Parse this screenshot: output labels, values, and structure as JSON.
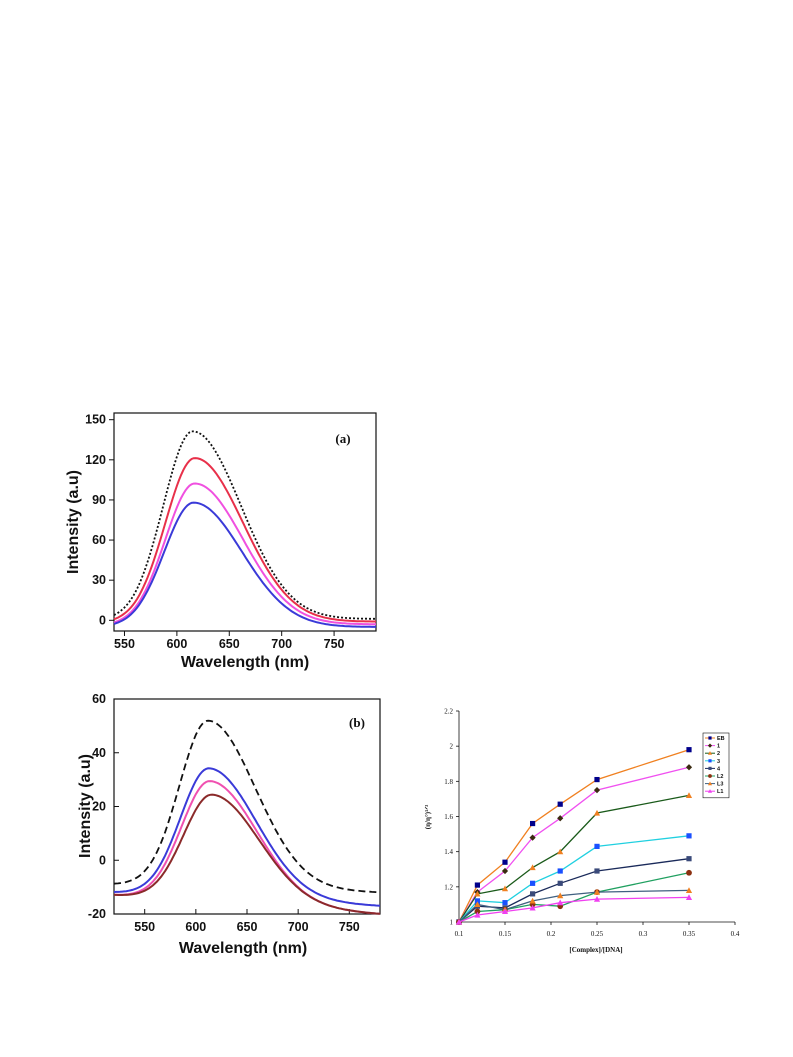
{
  "chart_data": [
    {
      "type": "line",
      "panel_label": "(a)",
      "xlabel": "Wavelength (nm)",
      "ylabel": "Intensity (a.u)",
      "xlim": [
        540,
        790
      ],
      "ylim": [
        -8,
        155
      ],
      "xticks": [
        550,
        600,
        650,
        700,
        750
      ],
      "yticks": [
        0,
        30,
        60,
        90,
        120,
        150
      ],
      "grid": false,
      "series": [
        {
          "style": "dotted",
          "color": "#111111",
          "peak_x": 615,
          "peak_y": 141,
          "base": 0,
          "tail": 1
        },
        {
          "style": "solid",
          "color": "#e8304a",
          "peak_x": 617,
          "peak_y": 121,
          "base": -2,
          "tail": -1
        },
        {
          "style": "solid",
          "color": "#f050e0",
          "peak_x": 617,
          "peak_y": 102,
          "base": -4,
          "tail": -3
        },
        {
          "style": "solid",
          "color": "#3a3ad8",
          "peak_x": 616,
          "peak_y": 88,
          "base": -5,
          "tail": -5
        }
      ]
    },
    {
      "type": "line",
      "panel_label": "(b)",
      "xlabel": "Wavelength (nm)",
      "ylabel": "Intensity (a.u)",
      "xlim": [
        520,
        780
      ],
      "ylim": [
        -20,
        60
      ],
      "xticks": [
        550,
        600,
        650,
        700,
        750
      ],
      "yticks": [
        -20,
        0,
        20,
        40,
        60
      ],
      "grid": false,
      "series": [
        {
          "style": "dashed",
          "color": "#111111",
          "peak_x": 612,
          "peak_y": 53,
          "base": -9,
          "tail": -12
        },
        {
          "style": "solid",
          "color": "#3a3ad8",
          "peak_x": 613,
          "peak_y": 36,
          "base": -12,
          "tail": -17
        },
        {
          "style": "solid",
          "color": "#f050b0",
          "peak_x": 614,
          "peak_y": 32,
          "base": -13,
          "tail": -20
        },
        {
          "style": "solid",
          "color": "#8b2a2a",
          "peak_x": 616,
          "peak_y": 27,
          "base": -13,
          "tail": -20
        }
      ]
    },
    {
      "type": "line",
      "xlabel": "[Complex]/[DNA]",
      "ylabel": "(η/η°)¹ᐟ³",
      "xlim": [
        0.1,
        0.4
      ],
      "ylim": [
        1,
        2.2
      ],
      "xticks": [
        "0.1",
        "0.15",
        "0.2",
        "0.25",
        "0.3",
        "0.35",
        "0.4"
      ],
      "yticks": [
        "1",
        "1.2",
        "1.4",
        "1.6",
        "1.8",
        "2",
        "2.2"
      ],
      "legend": "top-right",
      "grid": false,
      "x": [
        0.1,
        0.12,
        0.15,
        0.18,
        0.21,
        0.25,
        0.35
      ],
      "series": [
        {
          "name": "EB",
          "color": "#f08020",
          "marker": "square",
          "marker_color": "#00008b",
          "values": [
            1.0,
            1.21,
            1.34,
            1.56,
            1.67,
            1.81,
            1.98
          ]
        },
        {
          "name": "1",
          "color": "#f050f0",
          "marker": "diamond",
          "marker_color": "#3a2a10",
          "values": [
            1.0,
            1.17,
            1.29,
            1.48,
            1.59,
            1.75,
            1.88
          ]
        },
        {
          "name": "2",
          "color": "#1a5a1a",
          "marker": "triangle",
          "marker_color": "#f08020",
          "values": [
            1.0,
            1.16,
            1.19,
            1.31,
            1.4,
            1.62,
            1.72
          ]
        },
        {
          "name": "3",
          "color": "#20d0e0",
          "marker": "square",
          "marker_color": "#1a50ff",
          "values": [
            1.0,
            1.12,
            1.11,
            1.22,
            1.29,
            1.43,
            1.49
          ]
        },
        {
          "name": "4",
          "color": "#1a2a5a",
          "marker": "square",
          "marker_color": "#3a4a7a",
          "values": [
            1.0,
            1.09,
            1.08,
            1.16,
            1.22,
            1.29,
            1.36
          ]
        },
        {
          "name": "L2",
          "color": "#20a060",
          "marker": "circle",
          "marker_color": "#8b3010",
          "values": [
            1.0,
            1.06,
            1.07,
            1.1,
            1.09,
            1.17,
            1.28
          ]
        },
        {
          "name": "L3",
          "color": "#406080",
          "marker": "triangle",
          "marker_color": "#f08020",
          "values": [
            1.0,
            1.1,
            1.07,
            1.12,
            1.15,
            1.17,
            1.18
          ]
        },
        {
          "name": "L1",
          "color": "#f040f0",
          "marker": "triangle",
          "marker_color": "#f040f0",
          "values": [
            1.0,
            1.04,
            1.06,
            1.08,
            1.11,
            1.13,
            1.14
          ]
        }
      ]
    }
  ]
}
